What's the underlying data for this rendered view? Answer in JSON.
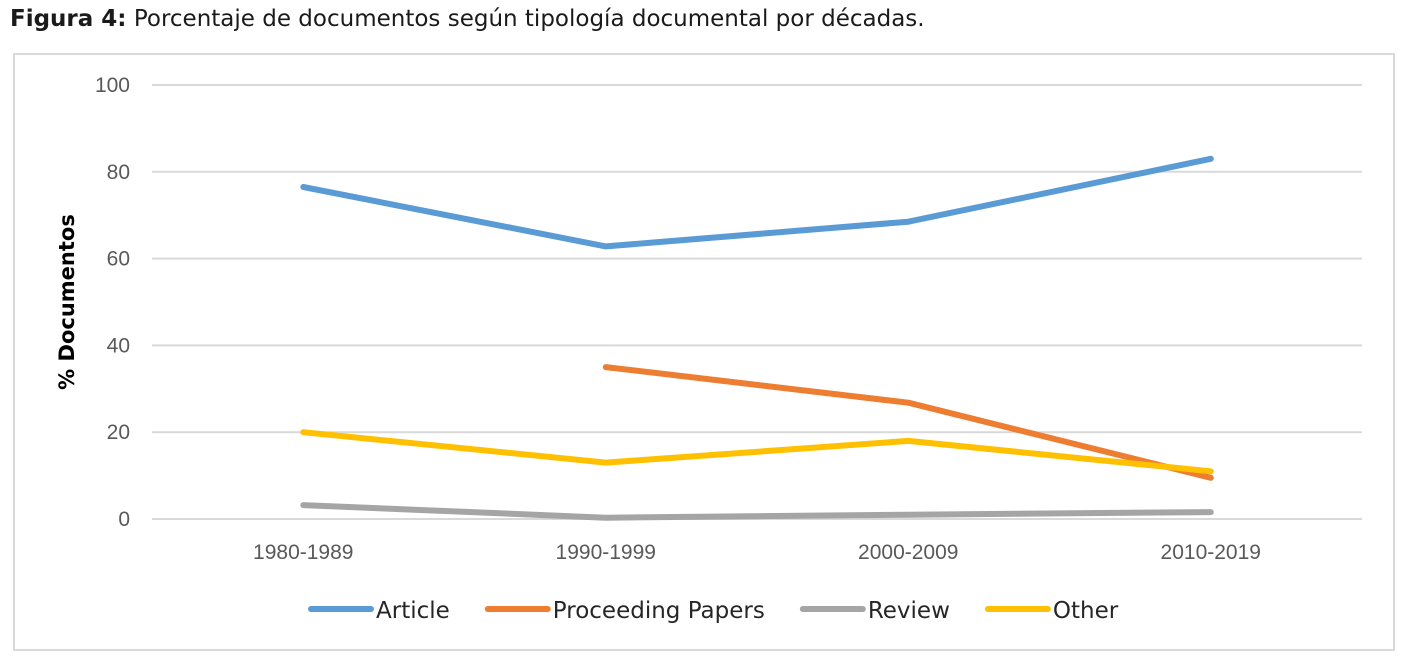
{
  "figure": {
    "label": "Figura 4:",
    "caption": "Porcentaje de documentos según tipología documental por décadas."
  },
  "chart_data": {
    "type": "line",
    "title": "",
    "xlabel": "",
    "ylabel": "% Documentos",
    "categories": [
      "1980-1989",
      "1990-1999",
      "2000-2009",
      "2010-2019"
    ],
    "ylim": [
      0,
      100
    ],
    "yticks": [
      0,
      20,
      40,
      60,
      80,
      100
    ],
    "grid": true,
    "legend_position": "bottom",
    "series": [
      {
        "name": "Article",
        "color": "#5b9bd5",
        "values": [
          76.5,
          62.8,
          68.5,
          83
        ]
      },
      {
        "name": "Proceeding Papers",
        "color": "#ed7d31",
        "values": [
          null,
          35,
          26.8,
          9.5
        ]
      },
      {
        "name": "Review",
        "color": "#a5a5a5",
        "values": [
          3.2,
          0.3,
          1,
          1.6
        ]
      },
      {
        "name": "Other",
        "color": "#ffc000",
        "values": [
          20,
          13,
          18,
          11
        ]
      }
    ]
  }
}
